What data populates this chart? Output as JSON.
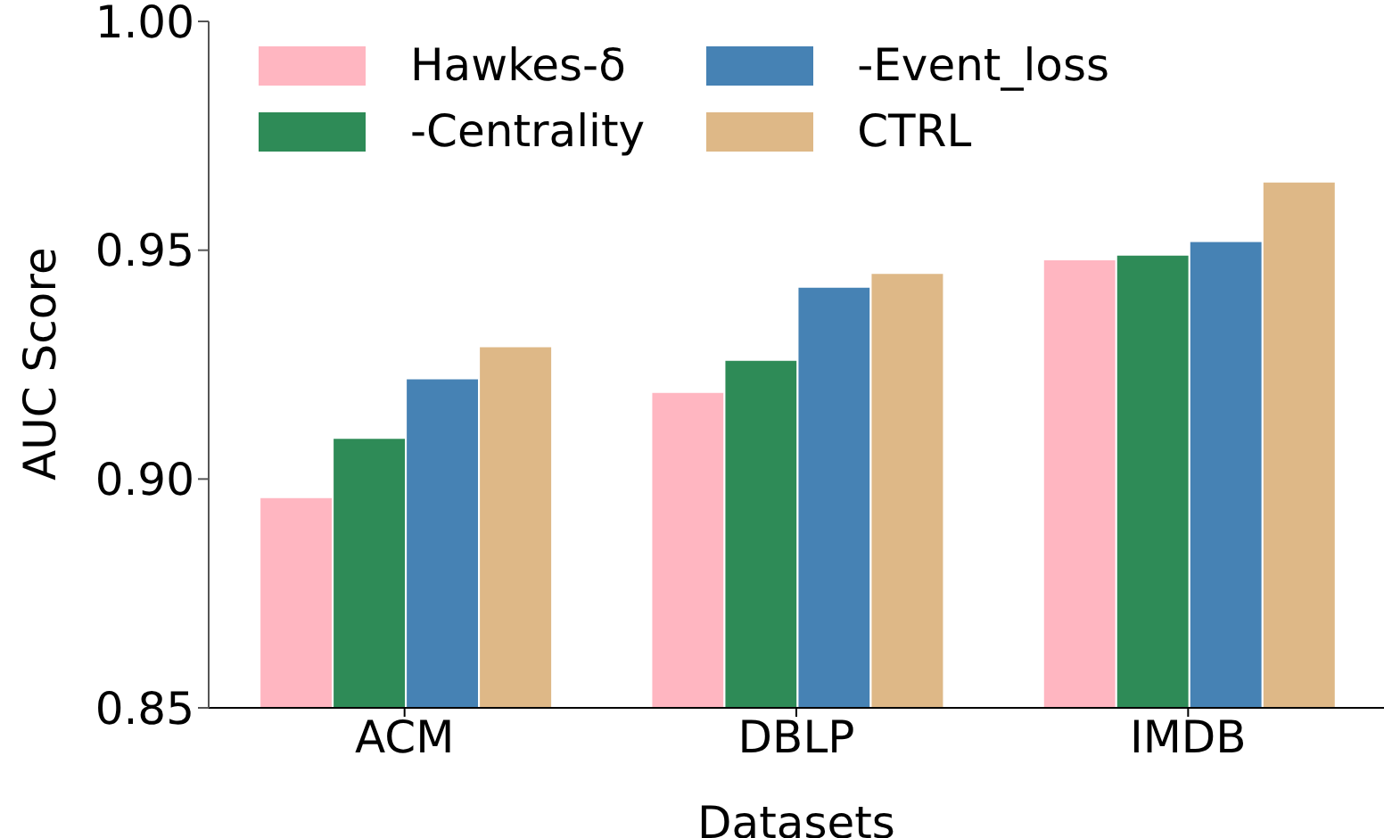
{
  "chart_data": {
    "type": "bar",
    "xlabel": "Datasets",
    "ylabel": "AUC Score",
    "categories": [
      "ACM",
      "DBLP",
      "IMDB"
    ],
    "series": [
      {
        "name": "Hawkes-δ",
        "color": "#ffb6c1",
        "values": [
          0.896,
          0.919,
          0.948
        ]
      },
      {
        "name": "-Centrality",
        "color": "#2e8b57",
        "values": [
          0.909,
          0.926,
          0.949
        ]
      },
      {
        "name": "-Event_loss",
        "color": "#4682b4",
        "values": [
          0.922,
          0.942,
          0.952
        ]
      },
      {
        "name": "CTRL",
        "color": "#deb887",
        "values": [
          0.929,
          0.945,
          0.965
        ]
      }
    ],
    "ylim": [
      0.85,
      1.0
    ],
    "yticks": [
      0.85,
      {
        "value": 0.9,
        "label": "0.90"
      },
      0.95,
      {
        "value": 1.0,
        "label": "1.00"
      }
    ],
    "grid": false,
    "legend": "top left"
  }
}
